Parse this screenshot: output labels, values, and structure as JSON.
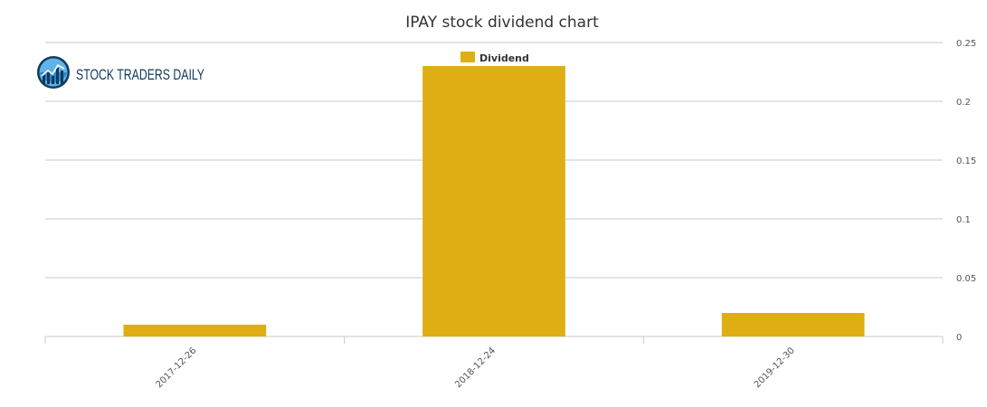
{
  "brand": {
    "name": "STOCK TRADERS DAILY",
    "icon": "bar-chart-globe-icon",
    "color": "#0f3a5c"
  },
  "chart_data": {
    "type": "bar",
    "title": "IPAY stock dividend chart",
    "categories": [
      "2017-12-26",
      "2018-12-24",
      "2019-12-30"
    ],
    "series": [
      {
        "name": "Dividend",
        "values": [
          0.01,
          0.23,
          0.02
        ],
        "color": "#dfae14"
      }
    ],
    "ylim": [
      0,
      0.25
    ],
    "yticks": [
      0,
      0.05,
      0.1,
      0.15,
      0.2,
      0.25
    ],
    "ytick_labels": [
      "0",
      "0.05",
      "0.1",
      "0.15",
      "0.2",
      "0.25"
    ],
    "y_axis_side": "right",
    "grid": true,
    "legend": "top-center",
    "xlabel": "",
    "ylabel": ""
  }
}
